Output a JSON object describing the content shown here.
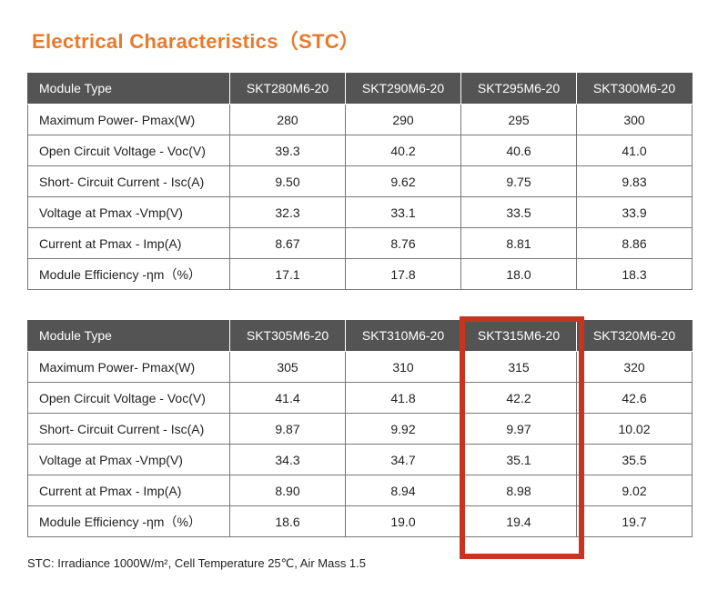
{
  "title": "Electrical Characteristics（STC）",
  "table1": {
    "header": [
      "Module Type",
      "SKT280M6-20",
      "SKT290M6-20",
      "SKT295M6-20",
      "SKT300M6-20"
    ],
    "rows": [
      [
        "Maximum Power- Pmax(W)",
        "280",
        "290",
        "295",
        "300"
      ],
      [
        "Open Circuit Voltage - Voc(V)",
        "39.3",
        "40.2",
        "40.6",
        "41.0"
      ],
      [
        "Short- Circuit Current - Isc(A)",
        "9.50",
        "9.62",
        "9.75",
        "9.83"
      ],
      [
        "Voltage at Pmax -Vmp(V)",
        "32.3",
        "33.1",
        "33.5",
        "33.9"
      ],
      [
        "Current at Pmax  - Imp(A)",
        "8.67",
        "8.76",
        "8.81",
        "8.86"
      ],
      [
        "Module Efficiency -ηm（%）",
        "17.1",
        "17.8",
        "18.0",
        "18.3"
      ]
    ]
  },
  "table2": {
    "header": [
      "Module Type",
      "SKT305M6-20",
      "SKT310M6-20",
      "SKT315M6-20",
      "SKT320M6-20"
    ],
    "rows": [
      [
        "Maximum Power- Pmax(W)",
        "305",
        "310",
        "315",
        "320"
      ],
      [
        "Open Circuit Voltage - Voc(V)",
        "41.4",
        "41.8",
        "42.2",
        "42.6"
      ],
      [
        "Short- Circuit Current - Isc(A)",
        "9.87",
        "9.92",
        "9.97",
        "10.02"
      ],
      [
        "Voltage at Pmax -Vmp(V)",
        "34.3",
        "34.7",
        "35.1",
        "35.5"
      ],
      [
        "Current at Pmax  - Imp(A)",
        "8.90",
        "8.94",
        "8.98",
        "9.02"
      ],
      [
        "Module Efficiency -ηm（%）",
        "18.6",
        "19.0",
        "19.4",
        "19.7"
      ]
    ]
  },
  "highlight": {
    "table": "table2",
    "column": "SKT315M6-20",
    "color": "#c8341f"
  },
  "footnote": "STC: Irradiance 1000W/m², Cell Temperature 25℃, Air Mass 1.5",
  "colors": {
    "title": "#e77a2b",
    "header_bg": "#545454",
    "header_text": "#ffffff",
    "border": "#777777"
  }
}
